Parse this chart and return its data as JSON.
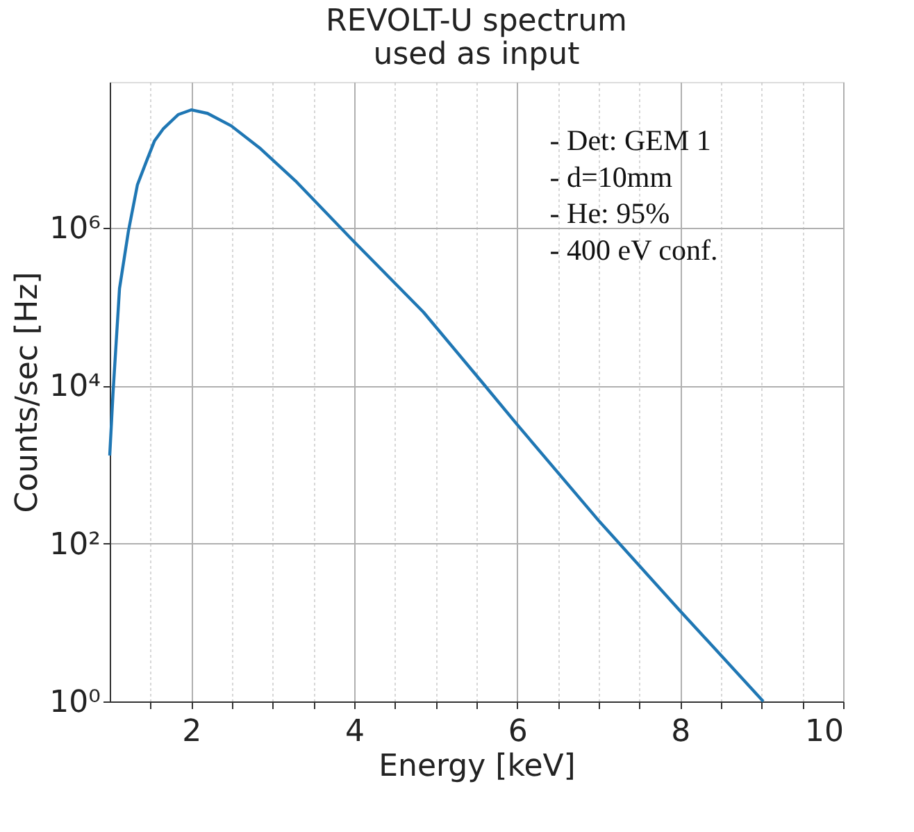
{
  "chart_data": {
    "type": "line",
    "title": [
      "REVOLT-U spectrum",
      "used as input"
    ],
    "xlabel": "Energy [keV]",
    "ylabel": "Counts/sec [Hz]",
    "x": [
      1.0,
      1.04,
      1.12,
      1.23,
      1.34,
      1.45,
      1.55,
      1.66,
      1.84,
      2.0,
      2.2,
      2.49,
      2.85,
      3.28,
      4.0,
      4.85,
      5.57,
      6.0,
      7.0,
      8.0,
      9.02
    ],
    "series": [
      {
        "color": "#1f77b4",
        "values": [
          1300,
          7900,
          170000,
          910000,
          3500000,
          6900000,
          12600000,
          18000000,
          27000000,
          31000000,
          28000000,
          19500000,
          10000000,
          3900000,
          660000,
          85000,
          11000,
          3200,
          195,
          14,
          1
        ]
      }
    ],
    "xlim": [
      1,
      10
    ],
    "xticks": [
      {
        "value": 1.5,
        "label": null
      },
      2,
      {
        "value": 2.5,
        "label": null
      },
      {
        "value": 3,
        "label": null
      },
      {
        "value": 3.5,
        "label": null
      },
      4,
      {
        "value": 4.5,
        "label": null
      },
      {
        "value": 5,
        "label": null
      },
      {
        "value": 5.5,
        "label": null
      },
      6,
      {
        "value": 6.5,
        "label": null
      },
      {
        "value": 7,
        "label": null
      },
      {
        "value": 7.5,
        "label": null
      },
      8,
      {
        "value": 8.5,
        "label": null
      },
      {
        "value": 9,
        "label": null
      },
      {
        "value": 9.5,
        "label": null
      },
      10
    ],
    "ylim": [
      1,
      70000000
    ],
    "yticks": [
      {
        "value": 1,
        "label": "10⁰"
      },
      {
        "value": 100,
        "label": "10²"
      },
      {
        "value": 10000,
        "label": "10⁴"
      },
      {
        "value": 1000000,
        "label": "10⁶"
      }
    ],
    "log": "y",
    "grid": true,
    "line_style": "solid",
    "marker": "none",
    "annotations": [
      "- Det: GEM 1",
      "- d=10mm",
      "- He: 95%",
      "- 400 eV conf."
    ]
  }
}
